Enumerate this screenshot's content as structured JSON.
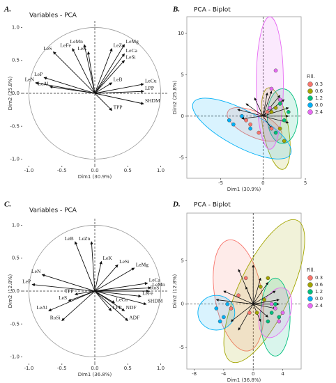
{
  "chart_data": [
    {
      "type": "pca-variables",
      "panel": "A.",
      "title": "Variables - PCA",
      "x_label": "Dim1 (30.9%)",
      "y_label": "Dim2 (25.8%)",
      "xlim": [
        -1.1,
        1.1
      ],
      "ylim": [
        -1.1,
        1.1
      ],
      "xticks": [
        {
          "value": -1,
          "label": "-1.0"
        },
        -0.5,
        {
          "value": 0,
          "label": "0.0"
        },
        0.5,
        {
          "value": 1,
          "label": "1.0"
        }
      ],
      "yticks": [
        {
          "value": -1,
          "label": "-1.0"
        },
        -0.5,
        {
          "value": 0,
          "label": "0.0"
        },
        0.5,
        {
          "value": 1,
          "label": "1.0"
        }
      ],
      "variables": {
        "names": [
          "LeS",
          "LeFe",
          "LeMn",
          "LeK",
          "LeZn",
          "LeMg",
          "LeCa",
          "LeSi",
          "LeP",
          "LeN",
          "LeAl",
          "LeB",
          "LeCu",
          "LPP",
          "SHDM",
          "TPP"
        ],
        "x": [
          -0.63,
          -0.34,
          -0.16,
          -0.1,
          0.26,
          0.45,
          0.45,
          0.45,
          -0.77,
          -0.9,
          -0.68,
          0.26,
          0.74,
          0.74,
          0.74,
          0.26
        ],
        "y": [
          0.63,
          0.68,
          0.74,
          0.63,
          0.68,
          0.74,
          0.6,
          0.5,
          0.24,
          0.16,
          0.1,
          0.16,
          0.14,
          0.03,
          -0.16,
          -0.26
        ]
      }
    },
    {
      "type": "biplot",
      "panel": "B.",
      "title": "PCA - Biplot",
      "x_label": "Dim1 (30.9%)",
      "y_label": "Dim2 (25.8%)",
      "legend_title": "Fill.",
      "xlim": [
        -9,
        4.5
      ],
      "ylim": [
        -7.5,
        12
      ],
      "xticks": [
        -5,
        0,
        5
      ],
      "yticks": [
        -5,
        0,
        5,
        10
      ],
      "series": [
        {
          "name": "0.3",
          "color": "#f8766d",
          "x": [
            -1.5,
            -0.5,
            0.5,
            -2,
            1
          ],
          "y": [
            -1,
            -2,
            0.5,
            -0.5,
            -1.5
          ],
          "ellipse": {
            "cx": -1,
            "cy": -1,
            "rx": 3.5,
            "ry": 1.5,
            "angle": -25
          }
        },
        {
          "name": "0.6",
          "color": "#a3a500",
          "x": [
            2,
            1,
            2.5,
            1.5
          ],
          "y": [
            -1.5,
            0.5,
            -3,
            1
          ],
          "ellipse": {
            "cx": 1.5,
            "cy": -1.5,
            "rx": 1.5,
            "ry": 5,
            "angle": 10
          }
        },
        {
          "name": "1.2",
          "color": "#00bf7d",
          "x": [
            2.5,
            3,
            1.5,
            2
          ],
          "y": [
            -0.5,
            0.5,
            -2,
            1.5
          ],
          "ellipse": {
            "cx": 2.3,
            "cy": 0,
            "rx": 1.8,
            "ry": 3.3,
            "angle": 0
          }
        },
        {
          "name": "0.0",
          "color": "#00b0f6",
          "x": [
            -3.5,
            -2.5,
            -4,
            -1.5
          ],
          "y": [
            -1,
            0,
            -0.5,
            -1.5
          ],
          "ellipse": {
            "cx": -2.5,
            "cy": -1.5,
            "rx": 6.5,
            "ry": 2.2,
            "angle": -28
          }
        },
        {
          "name": "2.4",
          "color": "#e76bf3",
          "x": [
            1,
            1.5,
            0.8,
            2
          ],
          "y": [
            3.3,
            5.5,
            1,
            2
          ],
          "ellipse": {
            "cx": 0.8,
            "cy": 4,
            "rx": 1.6,
            "ry": 8,
            "angle": 0
          }
        }
      ],
      "arrows": {
        "x": [
          -2,
          -3,
          -2.5,
          1,
          2,
          2.5,
          3,
          3,
          3,
          1,
          -1,
          0.5
        ],
        "y": [
          1.5,
          0.8,
          -0.3,
          3,
          2.5,
          2,
          1,
          0,
          -0.8,
          -1.5,
          2.2,
          2.8
        ]
      }
    },
    {
      "type": "pca-variables",
      "panel": "C.",
      "title": "Variables - PCA",
      "x_label": "Dim1 (36.8%)",
      "y_label": "Dim2 (12.8%)",
      "xlim": [
        -1.1,
        1.1
      ],
      "ylim": [
        -1.1,
        1.1
      ],
      "xticks": [
        {
          "value": -1,
          "label": "-1.0"
        },
        -0.5,
        {
          "value": 0,
          "label": "0.0"
        },
        0.5,
        {
          "value": 1,
          "label": "1.0"
        }
      ],
      "yticks": [
        {
          "value": -1,
          "label": "-1.0"
        },
        -0.5,
        {
          "value": 0,
          "label": "0.0"
        },
        0.5,
        {
          "value": 1,
          "label": "1.0"
        }
      ],
      "variables": {
        "names": [
          "LeB",
          "LeZn",
          "LeK",
          "LeSi",
          "LeMg",
          "LeN",
          "LeP",
          "TPP",
          "LeS",
          "LeAl",
          "RoSi",
          "LeCa",
          "LeMn",
          "RoS",
          "LeFe",
          "SHDM",
          "LeCu",
          "NDF",
          "LPP",
          "ADF"
        ],
        "x": [
          -0.3,
          -0.05,
          0.1,
          0.35,
          0.6,
          -0.8,
          -0.95,
          -0.3,
          -0.4,
          -0.7,
          -0.5,
          0.8,
          0.85,
          0.82,
          0.7,
          0.78,
          0.3,
          0.45,
          0.25,
          0.5
        ],
        "y": [
          0.75,
          0.75,
          0.45,
          0.4,
          0.35,
          0.25,
          0.1,
          -0.05,
          -0.15,
          -0.3,
          -0.45,
          0.12,
          0.05,
          0.0,
          -0.08,
          -0.2,
          -0.18,
          -0.3,
          -0.3,
          -0.45
        ]
      }
    },
    {
      "type": "biplot",
      "panel": "D.",
      "title": "PCA - Biplot",
      "x_label": "Dim1 (36.8%)",
      "y_label": "Dim2 (12.8%)",
      "legend_title": "Fill.",
      "xlim": [
        -9,
        6.5
      ],
      "ylim": [
        -7.5,
        10.5
      ],
      "xticks": [
        -8,
        -4,
        0,
        4
      ],
      "yticks": [
        -5,
        0,
        5
      ],
      "series": [
        {
          "name": "0.3",
          "color": "#f8766d",
          "x": [
            -2,
            -1,
            -3,
            -0.5
          ],
          "y": [
            1,
            3,
            -0.5,
            -1
          ],
          "ellipse": {
            "cx": -2,
            "cy": 1,
            "rx": 3.2,
            "ry": 6.5,
            "angle": 10
          }
        },
        {
          "name": "0.6",
          "color": "#a3a500",
          "x": [
            1,
            2,
            0.5,
            1.5
          ],
          "y": [
            2,
            3,
            -1,
            0.5
          ],
          "ellipse": {
            "cx": 1.5,
            "cy": 1.5,
            "rx": 3.5,
            "ry": 9,
            "angle": -25
          }
        },
        {
          "name": "1.2",
          "color": "#00bf7d",
          "x": [
            2.5,
            3,
            2,
            3.5
          ],
          "y": [
            -1,
            0,
            -2,
            -1.5
          ],
          "ellipse": {
            "cx": 3,
            "cy": -1.5,
            "rx": 2,
            "ry": 4.5,
            "angle": 0
          }
        },
        {
          "name": "0.0",
          "color": "#00b0f6",
          "x": [
            -5,
            -4,
            -4.5,
            -3.5
          ],
          "y": [
            -0.5,
            -1.5,
            -2,
            0
          ],
          "ellipse": {
            "cx": -5,
            "cy": -1,
            "rx": 2.5,
            "ry": 2,
            "angle": 0
          }
        },
        {
          "name": "2.4",
          "color": "#e76bf3",
          "x": [
            3,
            4,
            2.5,
            3.5
          ],
          "y": [
            -0.5,
            -1,
            0,
            -2
          ],
          "ellipse": {
            "cx": 3,
            "cy": -1,
            "rx": 2,
            "ry": 3,
            "angle": -20
          }
        }
      ],
      "arrows": {
        "x": [
          -2,
          0,
          1,
          2,
          3,
          3.5,
          3.5,
          3,
          2,
          1,
          -3,
          -2,
          -1,
          -4,
          -5
        ],
        "y": [
          4,
          4.5,
          3,
          2.5,
          1.5,
          0.5,
          0,
          -0.5,
          -1.5,
          -2,
          -2,
          -3,
          2,
          1.5,
          0.5
        ]
      }
    }
  ]
}
